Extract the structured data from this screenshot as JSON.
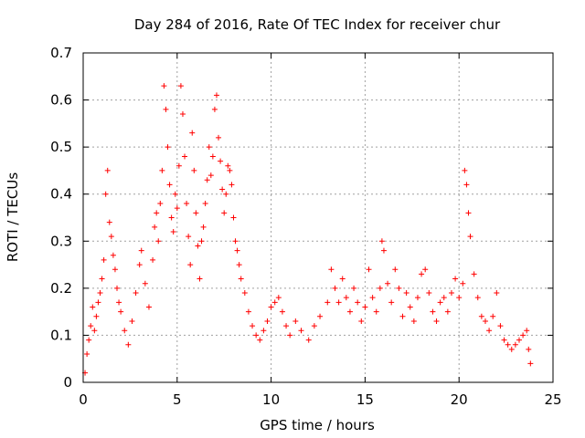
{
  "chart_data": {
    "type": "scatter",
    "title": "Day 284 of 2016, Rate Of TEC Index for receiver chur",
    "xlabel": "GPS time / hours",
    "ylabel": "ROTI / TECUs",
    "xlim": [
      0,
      25
    ],
    "ylim": [
      0,
      0.7
    ],
    "xticks": [
      0,
      5,
      10,
      15,
      20,
      25
    ],
    "yticks": [
      0,
      0.1,
      0.2,
      0.3,
      0.4,
      0.5,
      0.6,
      0.7
    ],
    "xtick_labels": [
      "0",
      "5",
      "10",
      "15",
      "20",
      "25"
    ],
    "ytick_labels": [
      "0",
      "0.1",
      "0.2",
      "0.3",
      "0.4",
      "0.5",
      "0.6",
      "0.7"
    ],
    "grid": true,
    "marker": "+",
    "marker_color": "#ff0000",
    "series": [
      {
        "name": "ROTI",
        "points": [
          [
            0.1,
            0.02
          ],
          [
            0.2,
            0.06
          ],
          [
            0.3,
            0.09
          ],
          [
            0.4,
            0.12
          ],
          [
            0.5,
            0.16
          ],
          [
            0.6,
            0.11
          ],
          [
            0.7,
            0.14
          ],
          [
            0.8,
            0.17
          ],
          [
            0.9,
            0.19
          ],
          [
            1.0,
            0.22
          ],
          [
            1.1,
            0.26
          ],
          [
            1.2,
            0.4
          ],
          [
            1.3,
            0.45
          ],
          [
            1.4,
            0.34
          ],
          [
            1.5,
            0.31
          ],
          [
            1.6,
            0.27
          ],
          [
            1.7,
            0.24
          ],
          [
            1.8,
            0.2
          ],
          [
            1.9,
            0.17
          ],
          [
            2.0,
            0.15
          ],
          [
            2.2,
            0.11
          ],
          [
            2.4,
            0.08
          ],
          [
            2.6,
            0.13
          ],
          [
            2.8,
            0.19
          ],
          [
            3.0,
            0.25
          ],
          [
            3.1,
            0.28
          ],
          [
            3.3,
            0.21
          ],
          [
            3.5,
            0.16
          ],
          [
            3.7,
            0.26
          ],
          [
            3.8,
            0.33
          ],
          [
            3.9,
            0.36
          ],
          [
            4.0,
            0.3
          ],
          [
            4.1,
            0.38
          ],
          [
            4.2,
            0.45
          ],
          [
            4.3,
            0.63
          ],
          [
            4.4,
            0.58
          ],
          [
            4.5,
            0.5
          ],
          [
            4.6,
            0.42
          ],
          [
            4.7,
            0.35
          ],
          [
            4.8,
            0.32
          ],
          [
            4.9,
            0.4
          ],
          [
            5.0,
            0.37
          ],
          [
            5.1,
            0.46
          ],
          [
            5.2,
            0.63
          ],
          [
            5.3,
            0.57
          ],
          [
            5.4,
            0.48
          ],
          [
            5.5,
            0.38
          ],
          [
            5.6,
            0.31
          ],
          [
            5.7,
            0.25
          ],
          [
            5.8,
            0.53
          ],
          [
            5.9,
            0.45
          ],
          [
            6.0,
            0.36
          ],
          [
            6.1,
            0.29
          ],
          [
            6.2,
            0.22
          ],
          [
            6.3,
            0.3
          ],
          [
            6.4,
            0.33
          ],
          [
            6.5,
            0.38
          ],
          [
            6.6,
            0.43
          ],
          [
            6.7,
            0.5
          ],
          [
            6.8,
            0.44
          ],
          [
            6.9,
            0.48
          ],
          [
            7.0,
            0.58
          ],
          [
            7.1,
            0.61
          ],
          [
            7.2,
            0.52
          ],
          [
            7.3,
            0.47
          ],
          [
            7.4,
            0.41
          ],
          [
            7.5,
            0.36
          ],
          [
            7.6,
            0.4
          ],
          [
            7.7,
            0.46
          ],
          [
            7.8,
            0.45
          ],
          [
            7.9,
            0.42
          ],
          [
            8.0,
            0.35
          ],
          [
            8.1,
            0.3
          ],
          [
            8.2,
            0.28
          ],
          [
            8.3,
            0.25
          ],
          [
            8.4,
            0.22
          ],
          [
            8.6,
            0.19
          ],
          [
            8.8,
            0.15
          ],
          [
            9.0,
            0.12
          ],
          [
            9.2,
            0.1
          ],
          [
            9.4,
            0.09
          ],
          [
            9.6,
            0.11
          ],
          [
            9.8,
            0.13
          ],
          [
            10.0,
            0.16
          ],
          [
            10.2,
            0.17
          ],
          [
            10.4,
            0.18
          ],
          [
            10.6,
            0.15
          ],
          [
            10.8,
            0.12
          ],
          [
            11.0,
            0.1
          ],
          [
            11.3,
            0.13
          ],
          [
            11.6,
            0.11
          ],
          [
            12.0,
            0.09
          ],
          [
            12.3,
            0.12
          ],
          [
            12.6,
            0.14
          ],
          [
            13.0,
            0.17
          ],
          [
            13.2,
            0.24
          ],
          [
            13.4,
            0.2
          ],
          [
            13.6,
            0.17
          ],
          [
            13.8,
            0.22
          ],
          [
            14.0,
            0.18
          ],
          [
            14.2,
            0.15
          ],
          [
            14.4,
            0.2
          ],
          [
            14.6,
            0.17
          ],
          [
            14.8,
            0.13
          ],
          [
            15.0,
            0.16
          ],
          [
            15.2,
            0.24
          ],
          [
            15.4,
            0.18
          ],
          [
            15.6,
            0.15
          ],
          [
            15.8,
            0.2
          ],
          [
            15.9,
            0.3
          ],
          [
            16.0,
            0.28
          ],
          [
            16.2,
            0.21
          ],
          [
            16.4,
            0.17
          ],
          [
            16.6,
            0.24
          ],
          [
            16.8,
            0.2
          ],
          [
            17.0,
            0.14
          ],
          [
            17.2,
            0.19
          ],
          [
            17.4,
            0.16
          ],
          [
            17.6,
            0.13
          ],
          [
            17.8,
            0.18
          ],
          [
            18.0,
            0.23
          ],
          [
            18.2,
            0.24
          ],
          [
            18.4,
            0.19
          ],
          [
            18.6,
            0.15
          ],
          [
            18.8,
            0.13
          ],
          [
            19.0,
            0.17
          ],
          [
            19.2,
            0.18
          ],
          [
            19.4,
            0.15
          ],
          [
            19.6,
            0.19
          ],
          [
            19.8,
            0.22
          ],
          [
            20.0,
            0.18
          ],
          [
            20.2,
            0.21
          ],
          [
            20.3,
            0.45
          ],
          [
            20.4,
            0.42
          ],
          [
            20.5,
            0.36
          ],
          [
            20.6,
            0.31
          ],
          [
            20.8,
            0.23
          ],
          [
            21.0,
            0.18
          ],
          [
            21.2,
            0.14
          ],
          [
            21.4,
            0.13
          ],
          [
            21.6,
            0.11
          ],
          [
            21.8,
            0.14
          ],
          [
            22.0,
            0.19
          ],
          [
            22.2,
            0.12
          ],
          [
            22.4,
            0.09
          ],
          [
            22.6,
            0.08
          ],
          [
            22.8,
            0.07
          ],
          [
            23.0,
            0.08
          ],
          [
            23.2,
            0.09
          ],
          [
            23.4,
            0.1
          ],
          [
            23.6,
            0.11
          ],
          [
            23.7,
            0.07
          ],
          [
            23.8,
            0.04
          ]
        ]
      }
    ]
  }
}
